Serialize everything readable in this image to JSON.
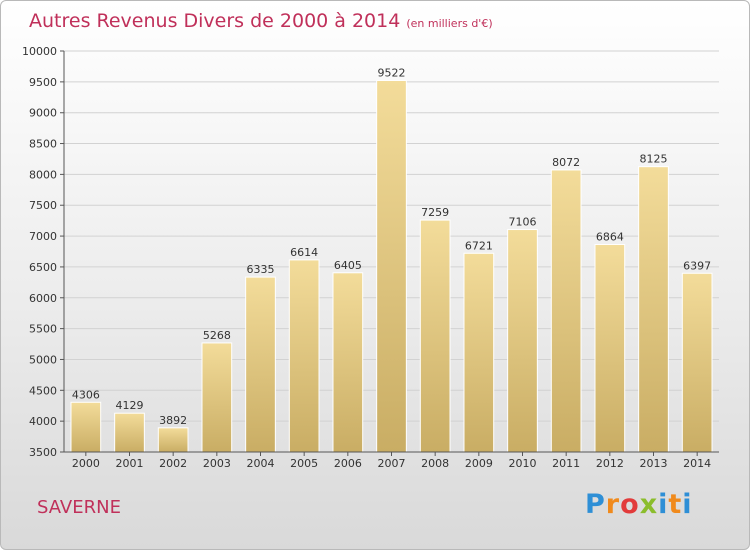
{
  "title": "Autres Revenus Divers de 2000 à 2014",
  "subtitle": "(en milliers d'€)",
  "place": "SAVERNE",
  "logo_text": "Proxiti",
  "colors": {
    "title": "#c0305a",
    "bar_top": "#f3dc9a",
    "bar_bottom": "#c9ad64",
    "grid": "#d2d2d2"
  },
  "chart_data": {
    "type": "bar",
    "title": "Autres Revenus Divers de 2000 à 2014",
    "subtitle": "(en milliers d'€)",
    "categories": [
      "2000",
      "2001",
      "2002",
      "2003",
      "2004",
      "2005",
      "2006",
      "2007",
      "2008",
      "2009",
      "2010",
      "2011",
      "2012",
      "2013",
      "2014"
    ],
    "values": [
      4306,
      4129,
      3892,
      5268,
      6335,
      6614,
      6405,
      9522,
      7259,
      6721,
      7106,
      8072,
      6864,
      8125,
      6397
    ],
    "ylim": [
      3500,
      10000
    ],
    "yticks": [
      3500,
      4000,
      4500,
      5000,
      5500,
      6000,
      6500,
      7000,
      7500,
      8000,
      8500,
      9000,
      9500,
      10000
    ],
    "grid": true,
    "legend": "none"
  }
}
